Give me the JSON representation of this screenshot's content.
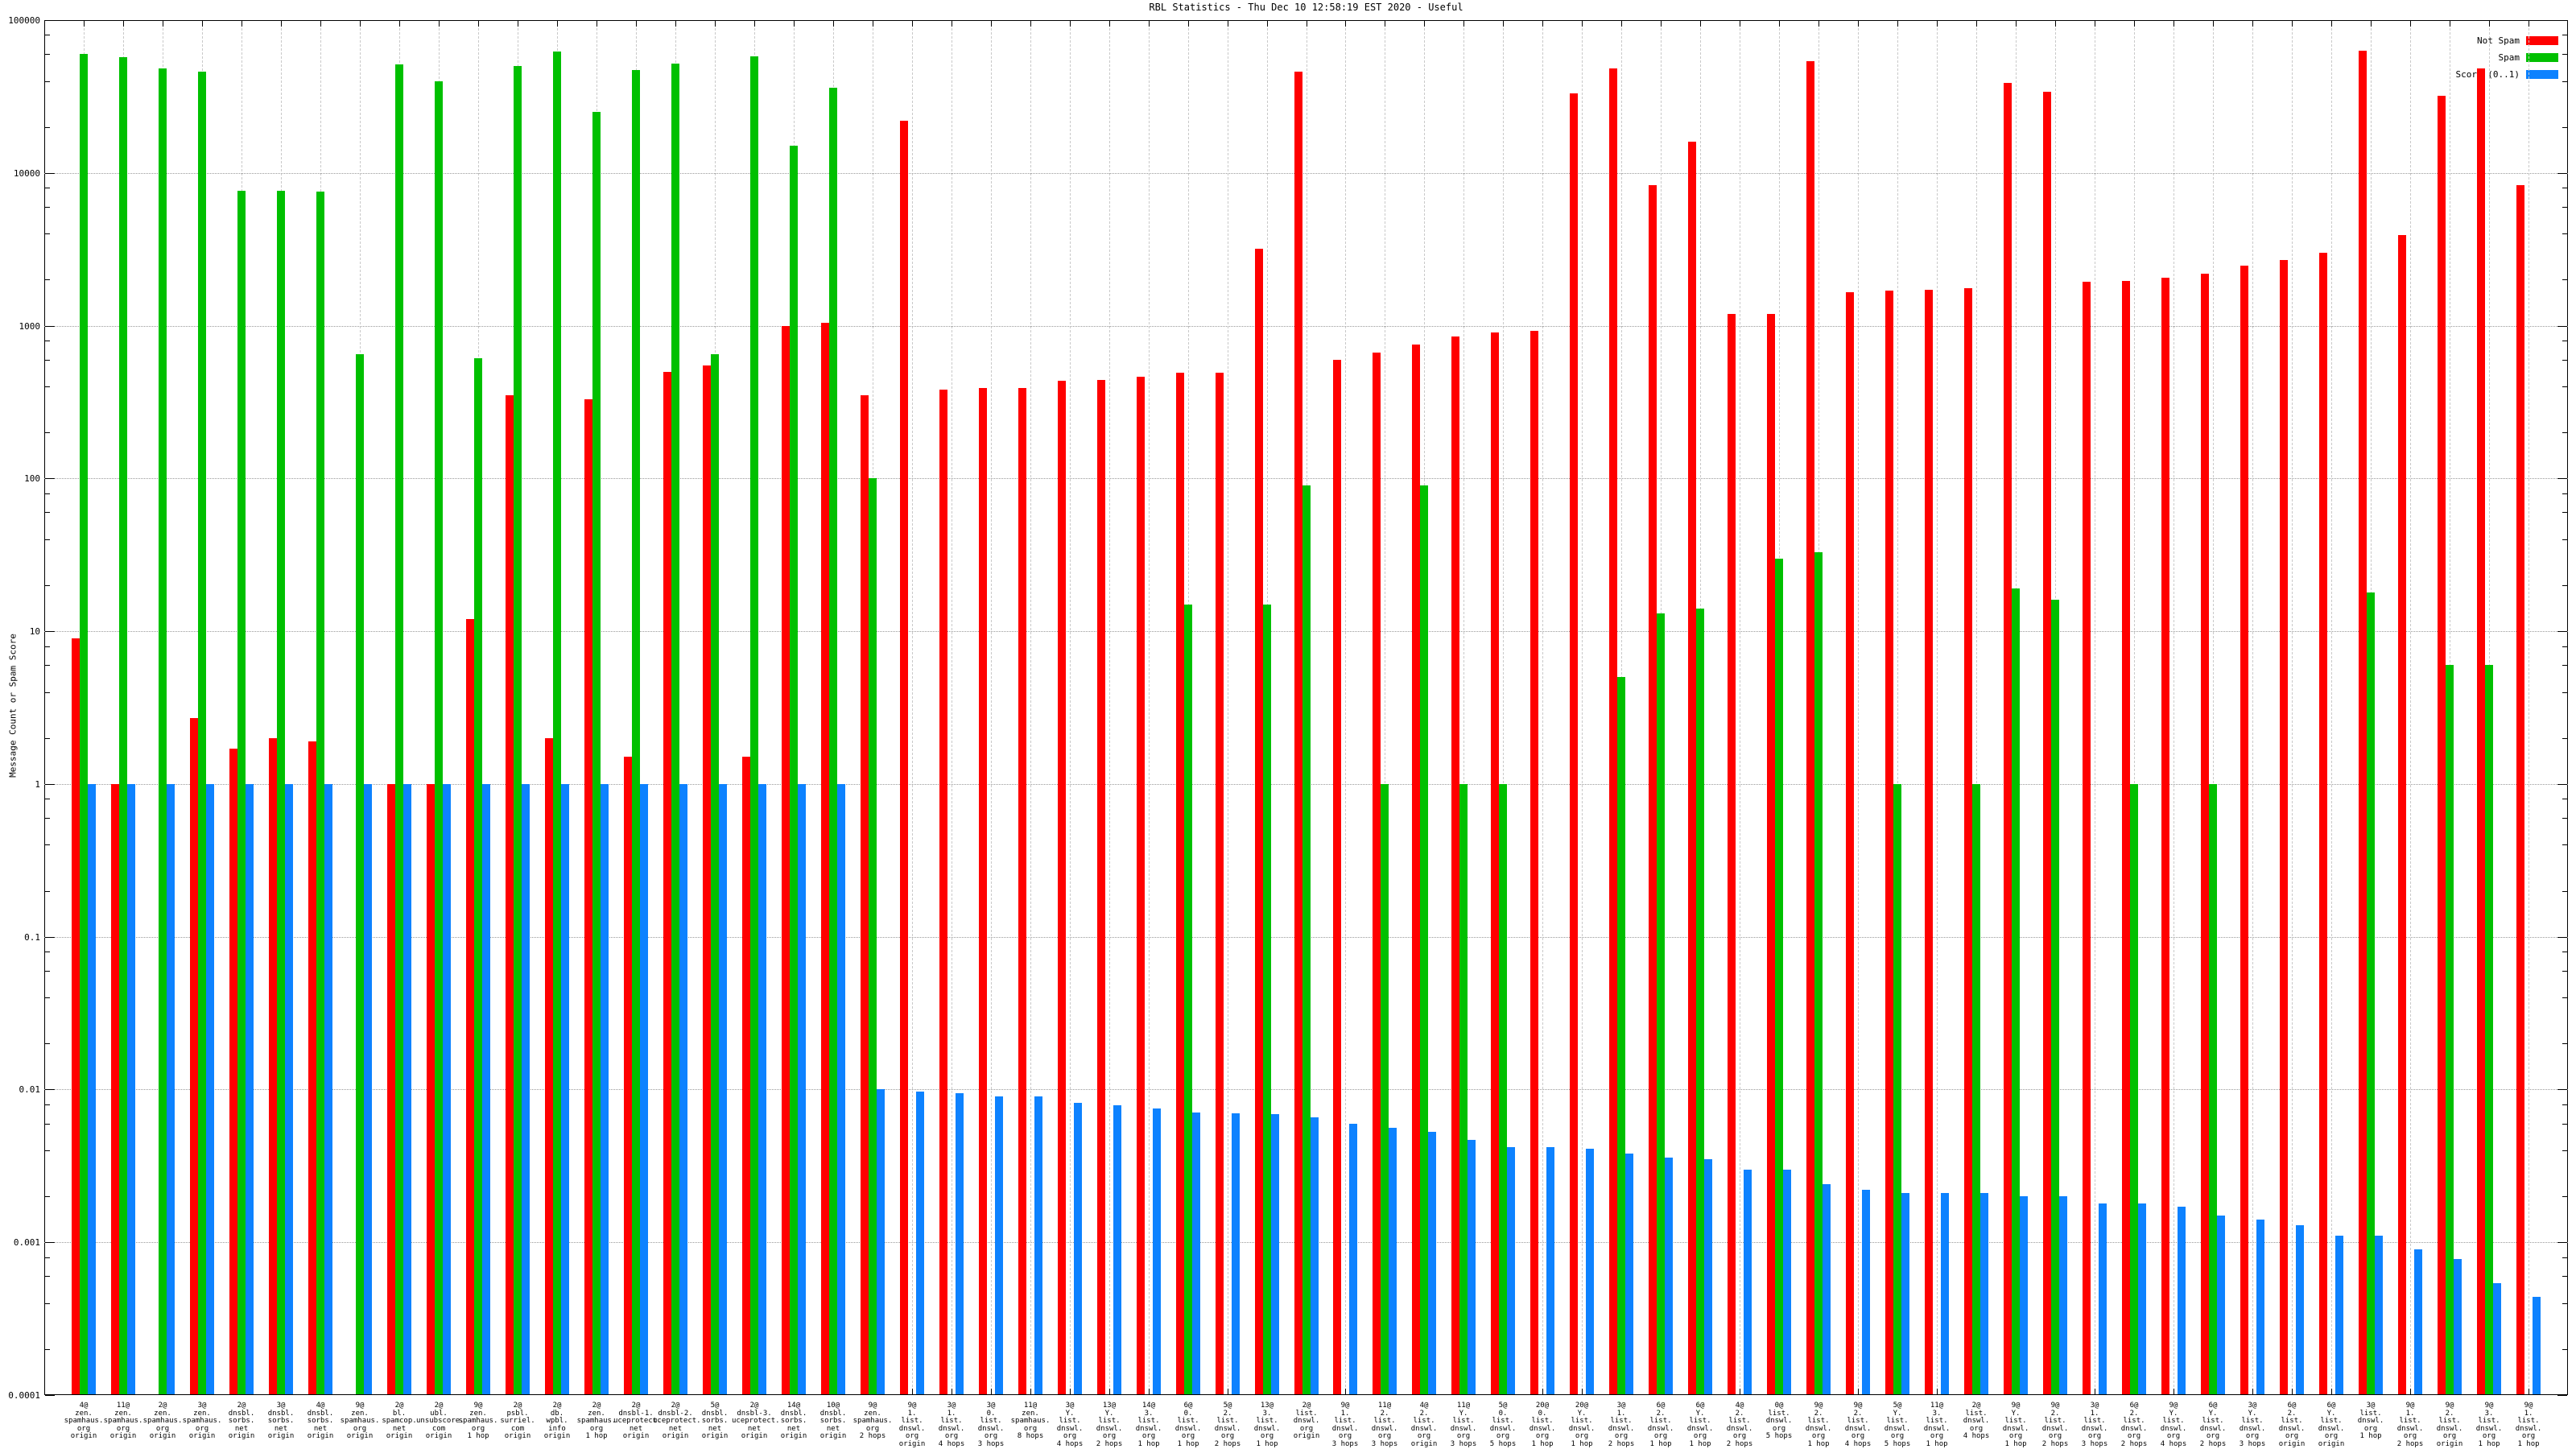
{
  "title": "RBL Statistics - Thu Dec 10 12:58:19 EST 2020 - Useful",
  "y_axis": {
    "label": "Message Count or Spam Score",
    "tick_labels": [
      "100000",
      "10000",
      "1000",
      "100",
      "10",
      "1",
      "0.1",
      "0.01",
      "0.001",
      "0.0001"
    ]
  },
  "legend": [
    {
      "label": "Not Spam",
      "color": "#ff0000"
    },
    {
      "label": "Spam",
      "color": "#00c000"
    },
    {
      "label": "Score (0..1)",
      "color": "#0d82ff"
    }
  ],
  "chart_data": {
    "type": "bar",
    "title": "RBL Statistics - Thu Dec 10 12:58:19 EST 2020 - Useful",
    "ylabel": "Message Count or Spam Score",
    "xlabel": "",
    "y_scale": "log10",
    "ylim": [
      0.0001,
      100000
    ],
    "grid": true,
    "legend_position": "top-right",
    "categories": [
      [
        "4@",
        "zen.",
        "spamhaus.",
        "org",
        "origin"
      ],
      [
        "11@",
        "zen.",
        "spamhaus.",
        "org",
        "origin"
      ],
      [
        "2@",
        "zen.",
        "spamhaus.",
        "org",
        "origin"
      ],
      [
        "3@",
        "zen.",
        "spamhaus.",
        "org",
        "origin"
      ],
      [
        "2@",
        "dnsbl.",
        "sorbs.",
        "net",
        "origin"
      ],
      [
        "3@",
        "dnsbl.",
        "sorbs.",
        "net",
        "origin"
      ],
      [
        "4@",
        "dnsbl.",
        "sorbs.",
        "net",
        "origin"
      ],
      [
        "9@",
        "zen.",
        "spamhaus.",
        "org",
        "origin"
      ],
      [
        "2@",
        "bl.",
        "spamcop.",
        "net",
        "origin"
      ],
      [
        "2@",
        "ubl.",
        "unsubscore.",
        "com",
        "origin"
      ],
      [
        "9@",
        "zen.",
        "spamhaus.",
        "org",
        "1 hop"
      ],
      [
        "2@",
        "psbl.",
        "surriel.",
        "com",
        "origin"
      ],
      [
        "2@",
        "db.",
        "wpbl.",
        "info",
        "origin"
      ],
      [
        "2@",
        "zen.",
        "spamhaus.",
        "org",
        "1 hop"
      ],
      [
        "2@",
        "dnsbl-1.",
        "uceprotect.",
        "net",
        "origin"
      ],
      [
        "2@",
        "dnsbl-2.",
        "uceprotect.",
        "net",
        "origin"
      ],
      [
        "5@",
        "dnsbl.",
        "sorbs.",
        "net",
        "origin"
      ],
      [
        "2@",
        "dnsbl-3.",
        "uceprotect.",
        "net",
        "origin"
      ],
      [
        "14@",
        "dnsbl.",
        "sorbs.",
        "net",
        "origin"
      ],
      [
        "10@",
        "dnsbl.",
        "sorbs.",
        "net",
        "origin"
      ],
      [
        "9@",
        "zen.",
        "spamhaus.",
        "org",
        "2 hops"
      ],
      [
        "9@",
        "1.",
        "list.",
        "dnswl.",
        "org",
        "origin"
      ],
      [
        "3@",
        "1.",
        "list.",
        "dnswl.",
        "org",
        "4 hops"
      ],
      [
        "3@",
        "0.",
        "list.",
        "dnswl.",
        "org",
        "3 hops"
      ],
      [
        "11@",
        "zen.",
        "spamhaus.",
        "org",
        "8 hops"
      ],
      [
        "3@",
        "Y.",
        "list.",
        "dnswl.",
        "org",
        "4 hops"
      ],
      [
        "13@",
        "Y.",
        "list.",
        "dnswl.",
        "org",
        "2 hops"
      ],
      [
        "14@",
        "3.",
        "list.",
        "dnswl.",
        "org",
        "1 hop"
      ],
      [
        "6@",
        "0.",
        "list.",
        "dnswl.",
        "org",
        "1 hop"
      ],
      [
        "5@",
        "2.",
        "list.",
        "dnswl.",
        "org",
        "2 hops"
      ],
      [
        "13@",
        "3.",
        "list.",
        "dnswl.",
        "org",
        "1 hop"
      ],
      [
        "2@",
        "list.",
        "dnswl.",
        "org",
        "origin"
      ],
      [
        "9@",
        "1.",
        "list.",
        "dnswl.",
        "org",
        "3 hops"
      ],
      [
        "11@",
        "2.",
        "list.",
        "dnswl.",
        "org",
        "3 hops"
      ],
      [
        "4@",
        "2.",
        "list.",
        "dnswl.",
        "org",
        "origin"
      ],
      [
        "11@",
        "Y.",
        "list.",
        "dnswl.",
        "org",
        "3 hops"
      ],
      [
        "5@",
        "0.",
        "list.",
        "dnswl.",
        "org",
        "5 hops"
      ],
      [
        "20@",
        "0.",
        "list.",
        "dnswl.",
        "org",
        "1 hop"
      ],
      [
        "20@",
        "Y.",
        "list.",
        "dnswl.",
        "org",
        "1 hop"
      ],
      [
        "3@",
        "1.",
        "list.",
        "dnswl.",
        "org",
        "2 hops"
      ],
      [
        "6@",
        "2.",
        "list.",
        "dnswl.",
        "org",
        "1 hop"
      ],
      [
        "6@",
        "Y.",
        "list.",
        "dnswl.",
        "org",
        "1 hop"
      ],
      [
        "4@",
        "2.",
        "list.",
        "dnswl.",
        "org",
        "2 hops"
      ],
      [
        "0@",
        "list.",
        "dnswl.",
        "org",
        "5 hops"
      ],
      [
        "9@",
        "2.",
        "list.",
        "dnswl.",
        "org",
        "1 hop"
      ],
      [
        "9@",
        "2.",
        "list.",
        "dnswl.",
        "org",
        "4 hops"
      ],
      [
        "5@",
        "Y.",
        "list.",
        "dnswl.",
        "org",
        "5 hops"
      ],
      [
        "11@",
        "3.",
        "list.",
        "dnswl.",
        "org",
        "1 hop"
      ],
      [
        "2@",
        "list.",
        "dnswl.",
        "org",
        "4 hops"
      ],
      [
        "9@",
        "Y.",
        "list.",
        "dnswl.",
        "org",
        "1 hop"
      ],
      [
        "9@",
        "2.",
        "list.",
        "dnswl.",
        "org",
        "2 hops"
      ],
      [
        "3@",
        "1.",
        "list.",
        "dnswl.",
        "org",
        "3 hops"
      ],
      [
        "6@",
        "2.",
        "list.",
        "dnswl.",
        "org",
        "2 hops"
      ],
      [
        "9@",
        "Y.",
        "list.",
        "dnswl.",
        "org",
        "4 hops"
      ],
      [
        "6@",
        "Y.",
        "list.",
        "dnswl.",
        "org",
        "2 hops"
      ],
      [
        "3@",
        "Y.",
        "list.",
        "dnswl.",
        "org",
        "3 hops"
      ],
      [
        "6@",
        "2.",
        "list.",
        "dnswl.",
        "org",
        "origin"
      ],
      [
        "6@",
        "Y.",
        "list.",
        "dnswl.",
        "org",
        "origin"
      ],
      [
        "3@",
        "list.",
        "dnswl.",
        "org",
        "1 hop"
      ],
      [
        "9@",
        "1.",
        "list.",
        "dnswl.",
        "org",
        "2 hops"
      ],
      [
        "9@",
        "2.",
        "list.",
        "dnswl.",
        "org",
        "origin"
      ],
      [
        "9@",
        "3.",
        "list.",
        "dnswl.",
        "org",
        "1 hop"
      ],
      [
        "9@",
        "1.",
        "list.",
        "dnswl.",
        "org",
        "1 hop"
      ]
    ],
    "series": [
      {
        "name": "Not Spam",
        "color": "#ff0000",
        "values": [
          9,
          1,
          0,
          2.7,
          1.7,
          2,
          1.9,
          0,
          1,
          1,
          12,
          350,
          2,
          330,
          1.5,
          500,
          550,
          1.5,
          1000,
          1050,
          350,
          22000,
          380,
          390,
          390,
          435,
          440,
          465,
          490,
          495,
          3200,
          46000,
          600,
          670,
          750,
          850,
          900,
          920,
          33000,
          48000,
          8300,
          16000,
          1200,
          1200,
          54000,
          1660,
          1700,
          1710,
          1760,
          39000,
          34000,
          1950,
          1970,
          2060,
          2200,
          2480,
          2700,
          3000,
          63000,
          3900,
          32000,
          48000,
          8300
        ]
      },
      {
        "name": "Spam",
        "color": "#00c000",
        "values": [
          60000,
          57000,
          48000,
          46000,
          7600,
          7600,
          7500,
          650,
          51000,
          40000,
          610,
          50000,
          62000,
          25000,
          47000,
          52000,
          650,
          58000,
          15000,
          36000,
          100,
          0,
          0,
          0,
          0,
          0,
          0,
          0,
          15,
          0,
          15,
          90,
          0,
          1,
          90,
          1,
          1,
          0,
          0,
          5,
          13,
          14,
          0,
          30,
          33,
          0,
          1,
          0,
          1,
          19,
          16,
          0,
          1,
          0,
          1,
          0,
          0,
          0,
          18,
          0,
          6,
          6,
          0
        ]
      },
      {
        "name": "Score (0..1)",
        "color": "#0d82ff",
        "values": [
          1,
          1,
          1,
          1,
          1,
          1,
          1,
          1,
          1,
          1,
          1,
          1,
          1,
          1,
          1,
          1,
          1,
          1,
          1,
          1,
          0.01,
          0.0097,
          0.0095,
          0.009,
          0.009,
          0.0082,
          0.0079,
          0.0075,
          0.0071,
          0.007,
          0.0069,
          0.0066,
          0.006,
          0.0056,
          0.0053,
          0.0047,
          0.0042,
          0.0042,
          0.0041,
          0.0038,
          0.0036,
          0.0035,
          0.003,
          0.003,
          0.0024,
          0.0022,
          0.0021,
          0.0021,
          0.0021,
          0.002,
          0.002,
          0.0018,
          0.0018,
          0.0017,
          0.0015,
          0.0014,
          0.0013,
          0.0011,
          0.0011,
          0.0009,
          0.00078,
          0.00054,
          0.00044
        ]
      }
    ]
  }
}
